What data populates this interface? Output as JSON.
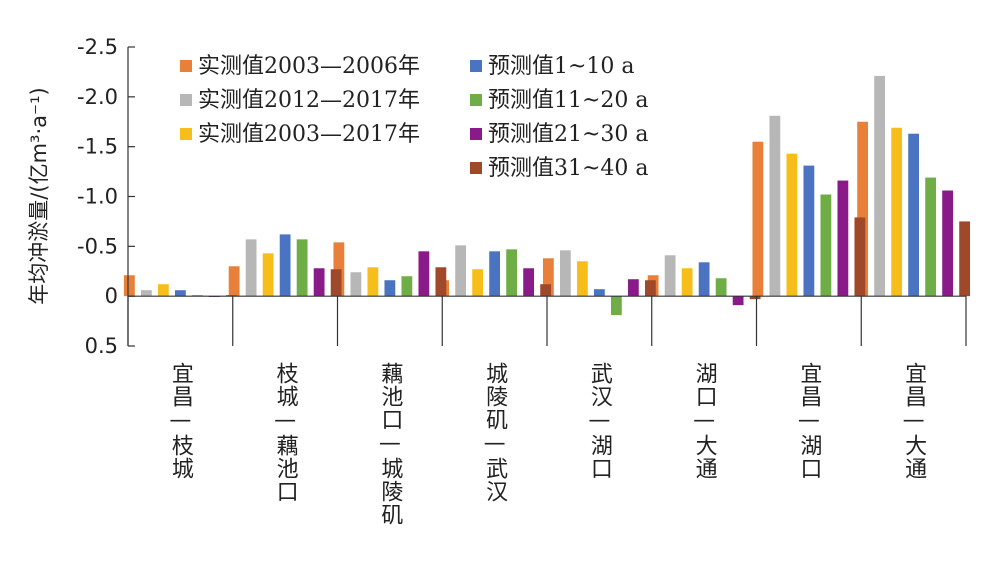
{
  "chart_data": {
    "type": "bar",
    "title": "",
    "xlabel": "",
    "ylabel": "年均冲淤量/(亿m³·a⁻¹)",
    "ylim": [
      0.5,
      -2.5
    ],
    "y_ticks": [
      -2.5,
      -2.0,
      -1.5,
      -1.0,
      -0.5,
      0,
      0.5
    ],
    "y_tick_labels": [
      "-2.5",
      "-2.0",
      "-1.5",
      "-1.0",
      "-0.5",
      "0",
      "0.5"
    ],
    "grid": false,
    "legend_position": "top-left",
    "categories": [
      "宜昌—枝城",
      "枝城—藕池口",
      "藕池口—城陵矶",
      "城陵矶—武汉",
      "武汉—湖口",
      "湖口—大通",
      "宜昌—湖口",
      "宜昌—大通"
    ],
    "series": [
      {
        "name": "实测值2003—2006年",
        "color": "#e8803a",
        "values": [
          -0.21,
          -0.3,
          -0.54,
          -0.16,
          -0.38,
          -0.21,
          -1.55,
          -1.75
        ]
      },
      {
        "name": "实测值2012—2017年",
        "color": "#b7b7b7",
        "values": [
          -0.06,
          -0.57,
          -0.24,
          -0.51,
          -0.46,
          -0.41,
          -1.81,
          -2.21
        ]
      },
      {
        "name": "实测值2003—2017年",
        "color": "#f7be1b",
        "values": [
          -0.12,
          -0.43,
          -0.29,
          -0.27,
          -0.35,
          -0.28,
          -1.43,
          -1.69
        ]
      },
      {
        "name": "预测值1~10 a",
        "color": "#4a74c2",
        "values": [
          -0.06,
          -0.62,
          -0.16,
          -0.45,
          -0.07,
          -0.34,
          -1.31,
          -1.63
        ]
      },
      {
        "name": "预测值11~20 a",
        "color": "#6fad46",
        "values": [
          -0.01,
          -0.57,
          -0.2,
          -0.47,
          0.19,
          -0.18,
          -1.02,
          -1.19
        ]
      },
      {
        "name": "预测值21~30 a",
        "color": "#8a1a8a",
        "values": [
          0.0,
          -0.28,
          -0.45,
          -0.28,
          -0.17,
          0.09,
          -1.16,
          -1.06
        ]
      },
      {
        "name": "预测值31~40 a",
        "color": "#a0482a",
        "values": [
          -0.01,
          -0.27,
          -0.29,
          -0.12,
          -0.16,
          0.03,
          -0.79,
          -0.75
        ]
      }
    ]
  }
}
